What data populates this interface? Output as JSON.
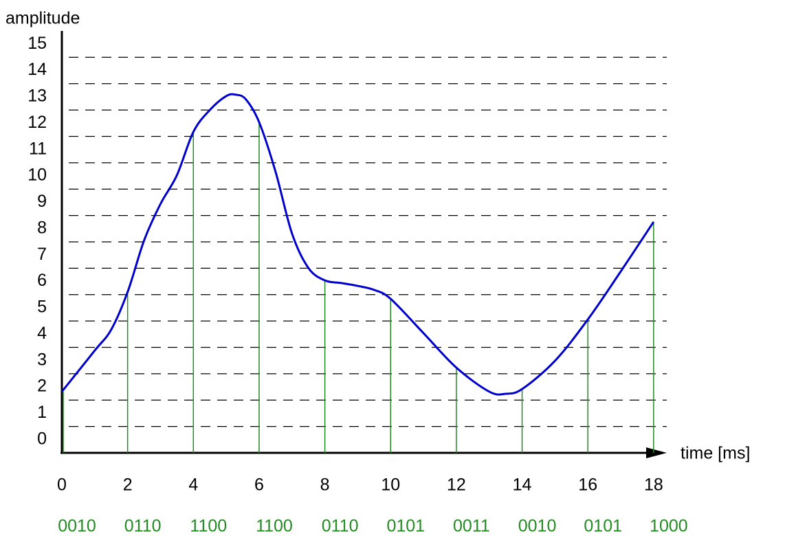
{
  "chart_data": {
    "type": "line",
    "y_label": "amplitude",
    "x_label": "time [ms]",
    "x": [
      0,
      1,
      1.5,
      2,
      2.5,
      3,
      3.5,
      4,
      4.5,
      5,
      5.3,
      5.6,
      6,
      6.5,
      7,
      7.5,
      8,
      8.5,
      9,
      9.5,
      10,
      11,
      12,
      13,
      13.5,
      14,
      15,
      16,
      17,
      18
    ],
    "values": [
      1.82,
      3.38,
      4.17,
      5.6,
      7.55,
      8.94,
      10.03,
      11.67,
      12.5,
      13.03,
      13.08,
      12.9,
      12.04,
      10.16,
      7.82,
      6.51,
      6.04,
      5.94,
      5.83,
      5.68,
      5.34,
      4.04,
      2.73,
      1.82,
      1.74,
      1.92,
      2.99,
      4.56,
      6.38,
      8.26
    ],
    "color": "#0000cc",
    "sample_x": [
      0,
      2,
      4,
      6,
      8,
      10,
      12,
      14,
      16,
      18
    ],
    "sample_values": [
      1.82,
      5.6,
      11.67,
      12.04,
      6.04,
      5.34,
      2.73,
      1.92,
      4.56,
      8.26
    ],
    "sample_color": "#228b22",
    "codes": [
      "0010",
      "0110",
      "1100",
      "1100",
      "0110",
      "0101",
      "0011",
      "0010",
      "0101",
      "1000"
    ],
    "xlim": [
      0,
      18.4
    ],
    "ylim": [
      -0.5,
      15.5
    ],
    "xticks": [
      0,
      2,
      4,
      6,
      8,
      10,
      12,
      14,
      16,
      18
    ],
    "yticks": [
      0,
      1,
      2,
      3,
      4,
      5,
      6,
      7,
      8,
      9,
      10,
      11,
      12,
      13,
      14,
      15
    ],
    "grid": true
  }
}
